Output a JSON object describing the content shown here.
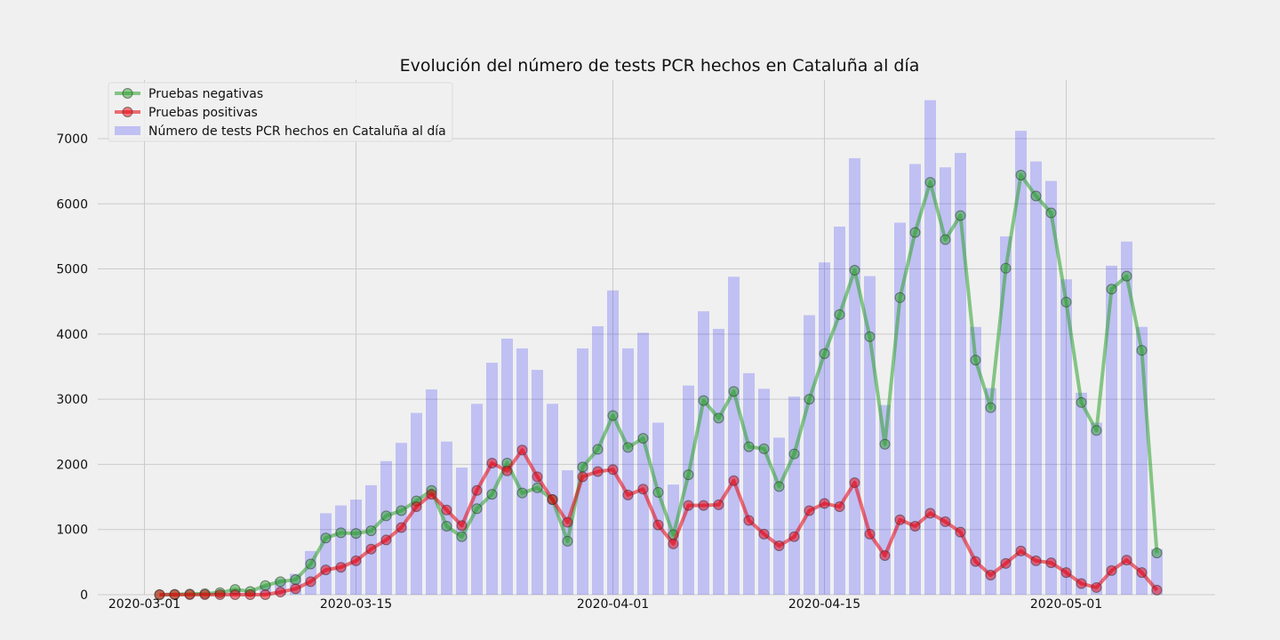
{
  "chart_data": {
    "type": "bar+line",
    "title": "Evolución del número de tests PCR hechos en Cataluña al día",
    "xlabel": "",
    "ylabel": "",
    "ylim": [
      0,
      7900
    ],
    "grid": true,
    "legend_position": "top-left",
    "start_date": "2020-03-02",
    "x_ticks": [
      "2020-03-01",
      "2020-03-15",
      "2020-04-01",
      "2020-04-15",
      "2020-05-01"
    ],
    "y_ticks": [
      0,
      1000,
      2000,
      3000,
      4000,
      5000,
      6000,
      7000
    ],
    "series": [
      {
        "name": "Pruebas negativas",
        "type": "line",
        "color": "#2ca02c",
        "values": [
          0,
          5,
          10,
          15,
          30,
          80,
          50,
          140,
          200,
          230,
          470,
          870,
          950,
          940,
          980,
          1210,
          1290,
          1440,
          1600,
          1050,
          890,
          1320,
          1540,
          2020,
          1560,
          1640,
          1460,
          820,
          1960,
          2230,
          2750,
          2260,
          2400,
          1570,
          920,
          1840,
          2980,
          2710,
          3120,
          2270,
          2240,
          1660,
          2160,
          3000,
          3700,
          4300,
          4980,
          3960,
          2310,
          4560,
          5560,
          6330,
          5450,
          5820,
          3600,
          2870,
          5010,
          6440,
          6120,
          5860,
          4490,
          2950,
          2520,
          4690,
          4890,
          3750,
          640
        ]
      },
      {
        "name": "Pruebas positivas",
        "type": "line",
        "color": "#e8000b",
        "values": [
          0,
          0,
          0,
          0,
          0,
          0,
          0,
          0,
          40,
          90,
          200,
          380,
          420,
          520,
          700,
          840,
          1030,
          1350,
          1540,
          1300,
          1060,
          1600,
          2020,
          1900,
          2220,
          1810,
          1460,
          1110,
          1810,
          1890,
          1920,
          1530,
          1620,
          1070,
          780,
          1370,
          1370,
          1380,
          1750,
          1140,
          930,
          750,
          890,
          1290,
          1400,
          1350,
          1720,
          930,
          600,
          1150,
          1050,
          1250,
          1120,
          960,
          510,
          300,
          480,
          670,
          520,
          490,
          340,
          170,
          110,
          370,
          530,
          340,
          70
        ]
      },
      {
        "name": "Número de tests PCR hechos en Cataluña al día",
        "type": "bar",
        "color": "#0000ff",
        "values": [
          0,
          5,
          10,
          15,
          30,
          80,
          50,
          140,
          240,
          320,
          670,
          1250,
          1370,
          1460,
          1680,
          2050,
          2330,
          2790,
          3150,
          2350,
          1950,
          2930,
          3560,
          3930,
          3780,
          3450,
          2930,
          1910,
          3780,
          4120,
          4670,
          3780,
          4020,
          2640,
          1690,
          3210,
          4350,
          4080,
          4880,
          3400,
          3160,
          2410,
          3040,
          4290,
          5100,
          5650,
          6700,
          4890,
          2910,
          5710,
          6610,
          7590,
          6560,
          6780,
          4110,
          3170,
          5500,
          7120,
          6650,
          6350,
          4840,
          3100,
          2640,
          5050,
          5420,
          4110,
          700
        ]
      }
    ]
  }
}
